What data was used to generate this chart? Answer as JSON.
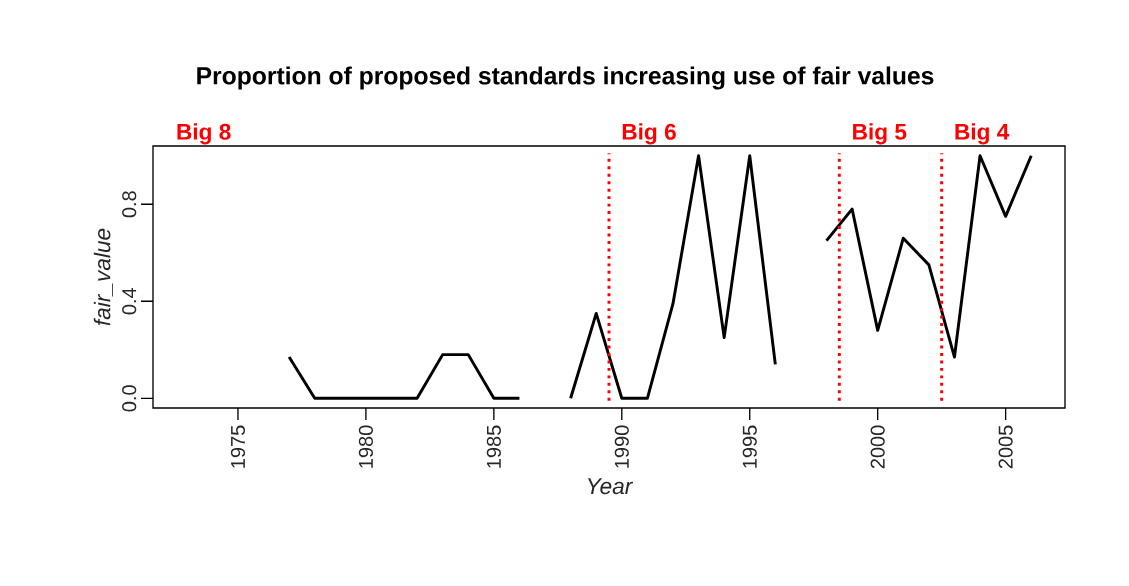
{
  "chart_data": {
    "type": "line",
    "title": "Proportion of proposed standards increasing use of fair values",
    "xlabel": "Year",
    "ylabel": "fair_value",
    "x": [
      1977,
      1978,
      1979,
      1980,
      1981,
      1982,
      1983,
      1984,
      1985,
      1986,
      1987,
      1988,
      1989,
      1990,
      1991,
      1992,
      1993,
      1994,
      1995,
      1996,
      1997,
      1998,
      1999,
      2000,
      2001,
      2002,
      2003,
      2004,
      2005,
      2006
    ],
    "series": [
      {
        "color": "#000000",
        "line_style": "solid",
        "values": [
          0.17,
          0,
          0,
          0,
          0,
          0,
          0.18,
          0.18,
          0,
          0,
          null,
          0,
          0.35,
          0,
          0,
          0.39,
          1,
          0.25,
          1,
          0.14,
          null,
          0.65,
          0.78,
          0.28,
          0.66,
          0.55,
          0.17,
          1,
          0.75,
          1
        ]
      }
    ],
    "xlim": [
      1971.68,
      2007.32
    ],
    "ylim": [
      -0.04,
      1.04
    ],
    "xticks": [
      1975,
      1980,
      1985,
      1990,
      1995,
      2000,
      2005
    ],
    "yticks": [
      {
        "value": 0,
        "label": "0.0"
      },
      0.4,
      0.8
    ],
    "ref_lines": [
      {
        "axis": "x",
        "value": 1989.5,
        "label": "Big 6",
        "color": "#ff0000",
        "line_style": "dotted"
      },
      {
        "axis": "x",
        "value": 1998.5,
        "label": "Big 5",
        "color": "#ff0000",
        "line_style": "dotted"
      },
      {
        "axis": "x",
        "value": 2002.5,
        "label": "Big 4",
        "color": "#ff0000",
        "line_style": "dotted"
      }
    ],
    "annotations": [
      "Big 8"
    ]
  }
}
